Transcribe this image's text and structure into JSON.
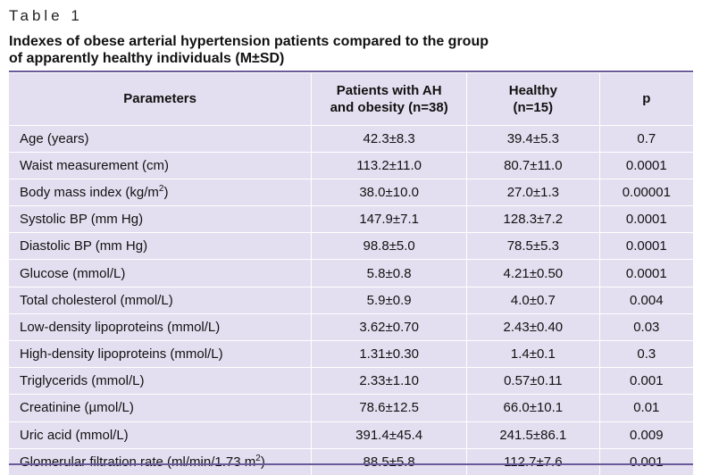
{
  "table_label": "Table 1",
  "caption_line1": "Indexes of obese arterial hypertension patients compared to the group",
  "caption_line2": "of apparently healthy individuals (M±SD)",
  "headers": {
    "parameters": "Parameters",
    "patients_line1": "Patients with AH",
    "patients_line2": "and obesity (n=38)",
    "healthy_line1": "Healthy",
    "healthy_line2": "(n=15)",
    "p": "p"
  },
  "rows": [
    {
      "param": "Age (years)",
      "sup": "",
      "param_tail": "",
      "patients": "42.3±8.3",
      "healthy": "39.4±5.3",
      "p": "0.7"
    },
    {
      "param": "Waist measurement (cm)",
      "sup": "",
      "param_tail": "",
      "patients": "113.2±11.0",
      "healthy": "80.7±11.0",
      "p": "0.0001"
    },
    {
      "param": "Body mass index (kg/m",
      "sup": "2",
      "param_tail": ")",
      "patients": "38.0±10.0",
      "healthy": "27.0±1.3",
      "p": "0.00001"
    },
    {
      "param": "Systolic BP (mm Hg)",
      "sup": "",
      "param_tail": "",
      "patients": "147.9±7.1",
      "healthy": "128.3±7.2",
      "p": "0.0001"
    },
    {
      "param": "Diastolic BP (mm Hg)",
      "sup": "",
      "param_tail": "",
      "patients": "98.8±5.0",
      "healthy": "78.5±5.3",
      "p": "0.0001"
    },
    {
      "param": "Glucose (mmol/L)",
      "sup": "",
      "param_tail": "",
      "patients": "5.8±0.8",
      "healthy": "4.21±0.50",
      "p": "0.0001"
    },
    {
      "param": "Total cholesterol (mmol/L)",
      "sup": "",
      "param_tail": "",
      "patients": "5.9±0.9",
      "healthy": "4.0±0.7",
      "p": "0.004"
    },
    {
      "param": "Low-density lipoproteins (mmol/L)",
      "sup": "",
      "param_tail": "",
      "patients": "3.62±0.70",
      "healthy": "2.43±0.40",
      "p": "0.03"
    },
    {
      "param": "High-density lipoproteins (mmol/L)",
      "sup": "",
      "param_tail": "",
      "patients": "1.31±0.30",
      "healthy": "1.4±0.1",
      "p": "0.3"
    },
    {
      "param": "Triglycerids (mmol/L)",
      "sup": "",
      "param_tail": "",
      "patients": "2.33±1.10",
      "healthy": "0.57±0.11",
      "p": "0.001"
    },
    {
      "param": "Creatinine (µmol/L)",
      "sup": "",
      "param_tail": "",
      "patients": "78.6±12.5",
      "healthy": "66.0±10.1",
      "p": "0.01"
    },
    {
      "param": "Uric acid (mmol/L)",
      "sup": "",
      "param_tail": "",
      "patients": "391.4±45.4",
      "healthy": "241.5±86.1",
      "p": "0.009"
    },
    {
      "param": "Glomerular filtration rate (ml/min/1.73 m",
      "sup": "2",
      "param_tail": ")",
      "patients": "88.5±5.8",
      "healthy": "112.7±7.6",
      "p": "0.001"
    }
  ]
}
